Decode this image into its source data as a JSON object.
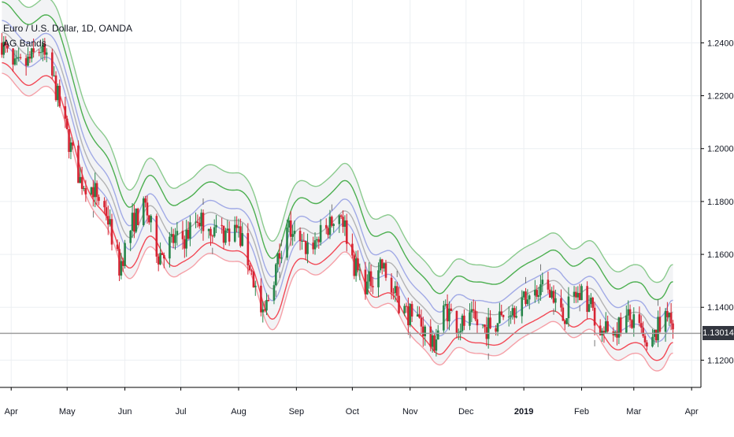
{
  "symbol": "Euro / U.S. Dollar, 1D, OANDA",
  "indicator": "AG Bands",
  "last_price": "1.13014",
  "colors": {
    "background": "#ffffff",
    "grid": "#eceff2",
    "candle_up": "#26854a",
    "candle_down": "#d62433",
    "band_green": "#4caf50",
    "band_green_outer": "#66bb6a",
    "band_blue": "#7f8ae0",
    "band_mid": "#888888",
    "band_red": "#f23645",
    "band_fill": "#f2f3f5",
    "price_line": "#9e9e9e",
    "price_tag": "#33363f",
    "axis_text": "#131722"
  },
  "chart_data": {
    "type": "candlestick",
    "title": "Euro / U.S. Dollar, 1D, OANDA",
    "indicator": "AG Bands",
    "ylim": [
      1.1097,
      1.2562
    ],
    "yticks": [
      1.12,
      1.14,
      1.16,
      1.18,
      1.2,
      1.22,
      1.24
    ],
    "ytick_labels": [
      "1.12000",
      "1.14000",
      "1.16000",
      "1.18000",
      "1.20000",
      "1.22000",
      "1.24000"
    ],
    "xlim": [
      "2018-03-26",
      "2019-04-06"
    ],
    "xticks": [
      {
        "date": "2018-04-01",
        "label": "Apr"
      },
      {
        "date": "2018-05-01",
        "label": "May"
      },
      {
        "date": "2018-06-01",
        "label": "Jun"
      },
      {
        "date": "2018-07-01",
        "label": "Jul"
      },
      {
        "date": "2018-08-01",
        "label": "Aug"
      },
      {
        "date": "2018-09-01",
        "label": "Sep"
      },
      {
        "date": "2018-10-01",
        "label": "Oct"
      },
      {
        "date": "2018-11-01",
        "label": "Nov"
      },
      {
        "date": "2018-12-01",
        "label": "Dec"
      },
      {
        "date": "2019-01-01",
        "label": "2019"
      },
      {
        "date": "2019-02-01",
        "label": "Feb"
      },
      {
        "date": "2019-03-01",
        "label": "Mar"
      },
      {
        "date": "2019-04-01",
        "label": "Apr"
      }
    ],
    "close_path": [
      [
        "2018-03-27",
        1.24
      ],
      [
        "2018-04-02",
        1.23
      ],
      [
        "2018-04-09",
        1.232
      ],
      [
        "2018-04-17",
        1.238
      ],
      [
        "2018-04-24",
        1.225
      ],
      [
        "2018-05-01",
        1.205
      ],
      [
        "2018-05-08",
        1.188
      ],
      [
        "2018-05-15",
        1.185
      ],
      [
        "2018-05-22",
        1.176
      ],
      [
        "2018-05-29",
        1.155
      ],
      [
        "2018-06-05",
        1.172
      ],
      [
        "2018-06-12",
        1.178
      ],
      [
        "2018-06-19",
        1.16
      ],
      [
        "2018-06-26",
        1.165
      ],
      [
        "2018-07-03",
        1.166
      ],
      [
        "2018-07-10",
        1.174
      ],
      [
        "2018-07-17",
        1.17
      ],
      [
        "2018-07-24",
        1.168
      ],
      [
        "2018-07-31",
        1.17
      ],
      [
        "2018-08-07",
        1.156
      ],
      [
        "2018-08-14",
        1.135
      ],
      [
        "2018-08-21",
        1.155
      ],
      [
        "2018-08-28",
        1.17
      ],
      [
        "2018-09-04",
        1.162
      ],
      [
        "2018-09-11",
        1.165
      ],
      [
        "2018-09-18",
        1.17
      ],
      [
        "2018-09-25",
        1.176
      ],
      [
        "2018-10-02",
        1.156
      ],
      [
        "2018-10-09",
        1.148
      ],
      [
        "2018-10-16",
        1.157
      ],
      [
        "2018-10-23",
        1.145
      ],
      [
        "2018-10-30",
        1.138
      ],
      [
        "2018-11-06",
        1.135
      ],
      [
        "2018-11-13",
        1.125
      ],
      [
        "2018-11-20",
        1.14
      ],
      [
        "2018-11-27",
        1.133
      ],
      [
        "2018-12-04",
        1.135
      ],
      [
        "2018-12-11",
        1.132
      ],
      [
        "2018-12-18",
        1.135
      ],
      [
        "2018-12-25",
        1.14
      ],
      [
        "2019-01-01",
        1.142
      ],
      [
        "2019-01-08",
        1.145
      ],
      [
        "2019-01-15",
        1.148
      ],
      [
        "2019-01-22",
        1.136
      ],
      [
        "2019-01-29",
        1.145
      ],
      [
        "2019-02-05",
        1.142
      ],
      [
        "2019-02-12",
        1.13
      ],
      [
        "2019-02-19",
        1.132
      ],
      [
        "2019-02-26",
        1.136
      ],
      [
        "2019-03-05",
        1.13
      ],
      [
        "2019-03-08",
        1.122
      ],
      [
        "2019-03-14",
        1.132
      ],
      [
        "2019-03-20",
        1.14
      ],
      [
        "2019-03-22",
        1.1301
      ]
    ],
    "band_offsets": {
      "outer_upper_green": 0.022,
      "inner_upper_green": 0.0155,
      "upper_blue": 0.0085,
      "middle_grey": 0.004,
      "lower_blue": -0.0005,
      "inner_lower_red": -0.0075,
      "outer_lower_red": -0.0115
    },
    "last_close": 1.13014,
    "grid": true
  }
}
